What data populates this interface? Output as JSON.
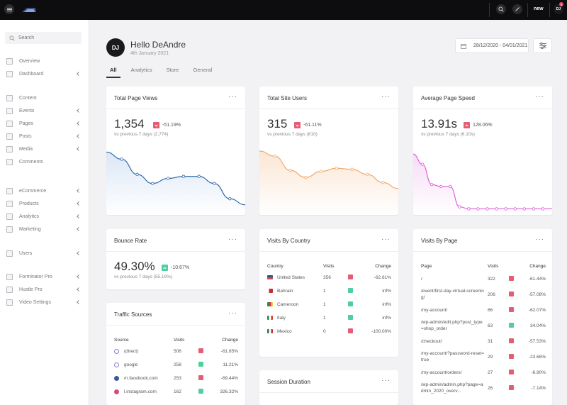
{
  "topbar": {
    "new_label": "new",
    "user_initials": "DJ",
    "notification_count": "3",
    "icons": [
      "menu-icon",
      "search-icon",
      "edit-icon"
    ]
  },
  "sidebar": {
    "search_placeholder": "Search",
    "items": [
      {
        "label": "Overview",
        "icon": "overview-icon",
        "chevron": false
      },
      {
        "label": "Dashboard",
        "icon": "dashboard-icon",
        "chevron": true
      },
      {
        "label": "Content",
        "icon": "content-icon",
        "chevron": false
      },
      {
        "label": "Events",
        "icon": "calendar-icon",
        "chevron": true
      },
      {
        "label": "Pages",
        "icon": "pages-icon",
        "chevron": true
      },
      {
        "label": "Posts",
        "icon": "posts-icon",
        "chevron": true
      },
      {
        "label": "Media",
        "icon": "media-icon",
        "chevron": true
      },
      {
        "label": "Comments",
        "icon": "comments-icon",
        "chevron": false
      },
      {
        "label": "eCommerce",
        "icon": "ecommerce-icon",
        "chevron": true
      },
      {
        "label": "Products",
        "icon": "products-icon",
        "chevron": true
      },
      {
        "label": "Analytics",
        "icon": "analytics-icon",
        "chevron": true
      },
      {
        "label": "Marketing",
        "icon": "megaphone-icon",
        "chevron": true
      },
      {
        "label": "Users",
        "icon": "users-icon",
        "chevron": true
      },
      {
        "label": "Forminator Pro",
        "icon": "forminator-icon",
        "chevron": true
      },
      {
        "label": "Hustle Pro",
        "icon": "hustle-icon",
        "chevron": true
      },
      {
        "label": "Video Settings",
        "icon": "video-icon",
        "chevron": true
      }
    ]
  },
  "header": {
    "initials": "DJ",
    "greeting": "Hello DeAndre",
    "date": "4th January 2021",
    "date_range": "28/12/2020 - 04/01/2021",
    "tabs": [
      "All",
      "Analytics",
      "Store",
      "General"
    ]
  },
  "colors": {
    "down": "#e35d73",
    "up": "#4fcf9f",
    "page_views_line": "#2e6aa8",
    "site_users_line": "#f0a86a",
    "page_speed_line": "#de5fdc"
  },
  "cards": {
    "page_views": {
      "title": "Total Page Views",
      "value": "1,354",
      "change": "-51.19%",
      "trend": "down",
      "vs": "vs previous 7 days (2,774)"
    },
    "site_users": {
      "title": "Total Site Users",
      "value": "315",
      "change": "-61.11%",
      "trend": "down",
      "vs": "vs previous 7 days (810)"
    },
    "page_speed": {
      "title": "Average Page Speed",
      "value": "13.91s",
      "change": "128.06%",
      "trend": "down",
      "vs": "vs previous 7 days (6.10s)"
    },
    "bounce_rate": {
      "title": "Bounce Rate",
      "value": "49.30%",
      "change": "-10.67%",
      "trend": "up",
      "vs": "vs previous 7 days (55.19%)"
    },
    "traffic_sources": {
      "title": "Traffic Sources",
      "headers": [
        "Source",
        "Visits",
        "Change"
      ],
      "rows": [
        {
          "source": "(direct)",
          "visits": "506",
          "change": "-61.65%",
          "trend": "down"
        },
        {
          "source": "google",
          "visits": "258",
          "change": "11.21%",
          "trend": "up"
        },
        {
          "source": "m.facebook.com",
          "visits": "253",
          "change": "-69.44%",
          "trend": "down"
        },
        {
          "source": "l.instagram.com",
          "visits": "162",
          "change": "326.32%",
          "trend": "up"
        }
      ]
    },
    "visits_by_country": {
      "title": "Visits By Country",
      "headers": [
        "Country",
        "Visits",
        "Change"
      ],
      "rows": [
        {
          "country": "United States",
          "visits": "356",
          "change": "-62.61%",
          "trend": "down"
        },
        {
          "country": "Bahrain",
          "visits": "1",
          "change": "inf%",
          "trend": "up"
        },
        {
          "country": "Cameroon",
          "visits": "1",
          "change": "inf%",
          "trend": "up"
        },
        {
          "country": "Italy",
          "visits": "1",
          "change": "inf%",
          "trend": "up"
        },
        {
          "country": "Mexico",
          "visits": "0",
          "change": "-100.00%",
          "trend": "down"
        }
      ]
    },
    "session_duration": {
      "title": "Session Duration"
    },
    "visits_by_page": {
      "title": "Visits By Page",
      "headers": [
        "Page",
        "Visits",
        "Change"
      ],
      "rows": [
        {
          "page": "/",
          "visits": "322",
          "change": "-61.44%",
          "trend": "down"
        },
        {
          "page": "/event/first-day-virtual-screening/",
          "visits": "206",
          "change": "-57.08%",
          "trend": "down"
        },
        {
          "page": "/my-account/",
          "visits": "66",
          "change": "-62.07%",
          "trend": "down"
        },
        {
          "page": "/wp-admin/edit.php?post_type=shop_order",
          "visits": "63",
          "change": "34.04%",
          "trend": "up"
        },
        {
          "page": "/checkout/",
          "visits": "31",
          "change": "-57.53%",
          "trend": "down"
        },
        {
          "page": "/my-account/?password-reset=true",
          "visits": "29",
          "change": "-23.68%",
          "trend": "down"
        },
        {
          "page": "/my-account/orders/",
          "visits": "27",
          "change": "-6.90%",
          "trend": "down"
        },
        {
          "page": "/wp-admin/admin.php?page=admin_2020_overv...",
          "visits": "26",
          "change": "-7.14%",
          "trend": "down"
        }
      ]
    }
  },
  "chart_data": [
    {
      "type": "area",
      "series": [
        {
          "values": [
            62,
            55,
            40,
            31,
            36,
            38,
            38,
            31,
            16,
            10
          ]
        }
      ],
      "ylim": [
        0,
        70
      ]
    },
    {
      "type": "area",
      "series": [
        {
          "values": [
            63,
            58,
            44,
            37,
            43,
            46,
            45,
            40,
            32,
            26
          ]
        }
      ],
      "ylim": [
        0,
        70
      ]
    },
    {
      "type": "area",
      "series": [
        {
          "values": [
            60,
            50,
            30,
            28,
            28,
            8,
            6,
            6,
            6,
            6,
            6,
            6,
            6,
            6,
            6,
            6
          ]
        }
      ],
      "ylim": [
        0,
        70
      ]
    }
  ]
}
